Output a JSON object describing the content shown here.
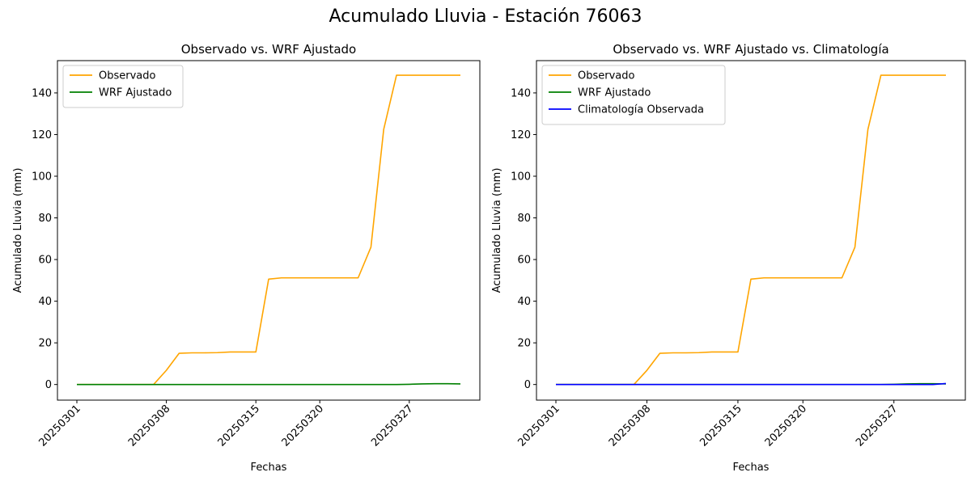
{
  "figure": {
    "suptitle": "Acumulado Lluvia - Estación 76063"
  },
  "chart_data": [
    {
      "type": "line",
      "title": "Observado vs. WRF Ajustado",
      "xlabel": "Fechas",
      "ylabel": "Acumulado Lluvia (mm)",
      "xtick_labels": [
        "20250301",
        "20250308",
        "20250315",
        "20250320",
        "20250327"
      ],
      "x": [
        "20250301",
        "20250302",
        "20250303",
        "20250304",
        "20250305",
        "20250306",
        "20250307",
        "20250308",
        "20250309",
        "20250310",
        "20250311",
        "20250312",
        "20250313",
        "20250314",
        "20250315",
        "20250316",
        "20250317",
        "20250318",
        "20250319",
        "20250320",
        "20250321",
        "20250322",
        "20250323",
        "20250324",
        "20250325",
        "20250326",
        "20250327",
        "20250328",
        "20250329",
        "20250330",
        "20250331"
      ],
      "ylim": [
        -7.5,
        155.5
      ],
      "yticks": [
        0,
        20,
        40,
        60,
        80,
        100,
        120,
        140
      ],
      "legend": "top-left",
      "grid": false,
      "series": [
        {
          "name": "Observado",
          "color": "#FFA500",
          "values": [
            0,
            0,
            0,
            0,
            0,
            0,
            0,
            6.8,
            15,
            15.2,
            15.2,
            15.3,
            15.6,
            15.6,
            15.6,
            50.6,
            51.2,
            51.2,
            51.2,
            51.2,
            51.2,
            51.2,
            51.2,
            65.9,
            122.5,
            148.5,
            148.5,
            148.5,
            148.5,
            148.5,
            148.5
          ]
        },
        {
          "name": "WRF Ajustado",
          "color": "#008000",
          "values": [
            0,
            0,
            0,
            0,
            0,
            0,
            0,
            0,
            0,
            0,
            0,
            0,
            0,
            0,
            0,
            0,
            0,
            0,
            0,
            0,
            0,
            0,
            0,
            0,
            0,
            0,
            0.1,
            0.3,
            0.4,
            0.4,
            0.3
          ]
        }
      ]
    },
    {
      "type": "line",
      "title": "Observado vs. WRF Ajustado vs. Climatología",
      "xlabel": "Fechas",
      "ylabel": "Acumulado Lluvia (mm)",
      "xtick_labels": [
        "20250301",
        "20250308",
        "20250315",
        "20250320",
        "20250327"
      ],
      "x": [
        "20250301",
        "20250302",
        "20250303",
        "20250304",
        "20250305",
        "20250306",
        "20250307",
        "20250308",
        "20250309",
        "20250310",
        "20250311",
        "20250312",
        "20250313",
        "20250314",
        "20250315",
        "20250316",
        "20250317",
        "20250318",
        "20250319",
        "20250320",
        "20250321",
        "20250322",
        "20250323",
        "20250324",
        "20250325",
        "20250326",
        "20250327",
        "20250328",
        "20250329",
        "20250330",
        "20250331"
      ],
      "ylim": [
        -7.5,
        155.5
      ],
      "yticks": [
        0,
        20,
        40,
        60,
        80,
        100,
        120,
        140
      ],
      "legend": "top-left",
      "grid": false,
      "series": [
        {
          "name": "Observado",
          "color": "#FFA500",
          "values": [
            0,
            0,
            0,
            0,
            0,
            0,
            0,
            6.8,
            15,
            15.2,
            15.2,
            15.3,
            15.6,
            15.6,
            15.6,
            50.6,
            51.2,
            51.2,
            51.2,
            51.2,
            51.2,
            51.2,
            51.2,
            65.9,
            122.5,
            148.5,
            148.5,
            148.5,
            148.5,
            148.5,
            148.5
          ]
        },
        {
          "name": "WRF Ajustado",
          "color": "#008000",
          "values": [
            0,
            0,
            0,
            0,
            0,
            0,
            0,
            0,
            0,
            0,
            0,
            0,
            0,
            0,
            0,
            0,
            0,
            0,
            0,
            0,
            0,
            0,
            0,
            0,
            0,
            0,
            0.1,
            0.3,
            0.4,
            0.4,
            0.3
          ]
        },
        {
          "name": "Climatología Observada",
          "color": "#0000FF",
          "values": [
            0,
            0,
            0,
            0,
            0,
            0,
            0,
            0,
            0,
            0,
            0,
            0,
            0,
            0,
            0,
            0,
            0,
            0,
            0,
            0,
            0,
            0,
            0,
            0,
            0,
            0,
            0,
            0,
            0,
            0,
            0.5
          ]
        }
      ]
    }
  ]
}
